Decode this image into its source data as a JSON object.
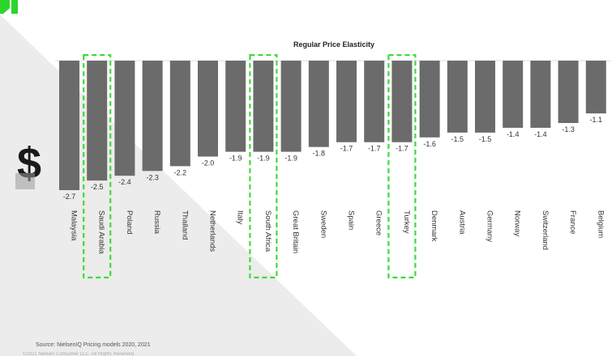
{
  "chart_data": {
    "type": "bar",
    "title": "Regular Price Elasticity",
    "categories": [
      "Malaysia",
      "Saudi Arabia",
      "Poland",
      "Russia",
      "Thailand",
      "Netherlands",
      "Italy",
      "South Africa",
      "Great Britain",
      "Sweden",
      "Spain",
      "Greece",
      "Turkey",
      "Denmark",
      "Austria",
      "Germany",
      "Norway",
      "Switzerland",
      "France",
      "Belgium"
    ],
    "values": [
      -2.7,
      -2.5,
      -2.4,
      -2.3,
      -2.2,
      -2.0,
      -1.9,
      -1.9,
      -1.9,
      -1.8,
      -1.7,
      -1.7,
      -1.7,
      -1.6,
      -1.5,
      -1.5,
      -1.4,
      -1.4,
      -1.3,
      -1.1
    ],
    "value_labels": [
      "-2.7",
      "-2.5",
      "-2.4",
      "-2.3",
      "-2.2",
      "-2.0",
      "-1.9",
      "-1.9",
      "-1.9",
      "-1.8",
      "-1.7",
      "-1.7",
      "-1.7",
      "-1.6",
      "-1.5",
      "-1.5",
      "-1.4",
      "-1.4",
      "-1.3",
      "-1.1"
    ],
    "highlighted": [
      "Saudi Arabia",
      "South Africa",
      "Turkey"
    ],
    "ylim": [
      -2.7,
      0
    ],
    "xlabel": "",
    "ylabel": "",
    "colors": {
      "bar": "#6b6b6b",
      "highlight": "#3ddc3a",
      "axis": "#dddddd",
      "background_shade": "#ececec",
      "logo": "#2bd62b"
    }
  },
  "footer": {
    "source": "Source: NielsenIQ Pricing models 2020, 2021",
    "copyright": "©2021 Nielsen Consumer LLC. All Rights Reserved."
  },
  "icon": {
    "name": "dollar-icon",
    "glyph": "$"
  }
}
